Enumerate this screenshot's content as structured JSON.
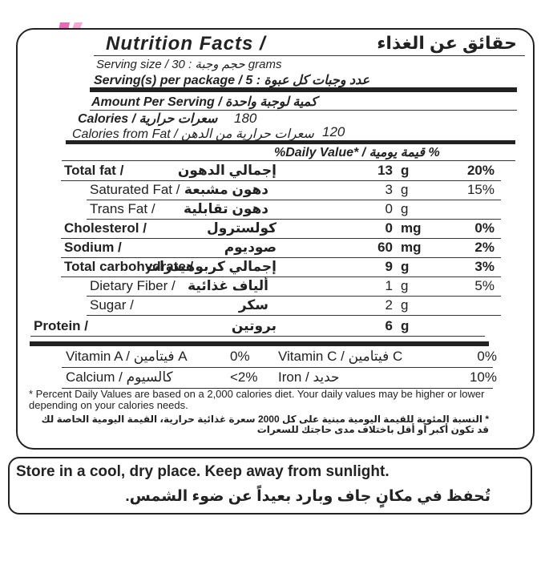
{
  "header": {
    "title_en": "Nutrition Facts /",
    "title_ar": "حقائق عن الغذاء",
    "serving_size": "Serving size / حجم وجبة : 30 grams",
    "servings": "Serving(s) per package / عدد وجبات كل عبوة : 5"
  },
  "calories": {
    "amount_per_serving": "Amount Per Serving / كمية لوجبة واحدة",
    "calories_label": "Calories / سعرات حرارية",
    "calories_value": "180",
    "from_fat_label": "Calories from Fat / سعرات حرارية من الدهن",
    "from_fat_value": "120",
    "dv_header": "%Daily Value* / قيمة يومية %"
  },
  "nutrients": [
    {
      "name_en": "Total fat /",
      "name_ar": "إجمالي الدهون",
      "amount": "13",
      "unit": "g",
      "dv": "20%",
      "bold": true,
      "indent": 0
    },
    {
      "name_en": "Saturated Fat /",
      "name_ar": "دهون مشبعة",
      "amount": "3",
      "unit": "g",
      "dv": "15%",
      "bold": false,
      "indent": 1
    },
    {
      "name_en": "Trans Fat /",
      "name_ar": "دهون تقابلية",
      "amount": "0",
      "unit": "g",
      "bold": false,
      "indent": 1
    },
    {
      "name_en": "Cholesterol /",
      "name_ar": "كولسترول",
      "amount": "0",
      "unit": "mg",
      "dv": "0%",
      "bold": true,
      "indent": 0
    },
    {
      "name_en": "Sodium /",
      "name_ar": "صوديوم",
      "amount": "60",
      "unit": "mg",
      "dv": "2%",
      "bold": true,
      "indent": 0
    },
    {
      "name_en": "Total carbohydrate /",
      "name_ar": "إجمالي كربوهيدرات",
      "amount": "9",
      "unit": "g",
      "dv": "3%",
      "bold": true,
      "indent": 0
    },
    {
      "name_en": "Dietary Fiber /",
      "name_ar": "ألياف غذائية",
      "amount": "1",
      "unit": "g",
      "dv": "5%",
      "bold": false,
      "indent": 1
    },
    {
      "name_en": "Sugar /",
      "name_ar": "سكر",
      "amount": "2",
      "unit": "g",
      "bold": false,
      "indent": 1
    },
    {
      "name_en": "Protein /",
      "name_ar": "بروتين",
      "amount": "6",
      "unit": "g",
      "bold": true,
      "indent": -1
    }
  ],
  "vitamins": [
    [
      {
        "name": "Vitamin A / فيتامين A",
        "dv": "0%"
      },
      {
        "name": "Vitamin C / فيتامين C",
        "dv": "0%"
      }
    ],
    [
      {
        "name": "Calcium / كالسيوم",
        "dv": "<2%"
      },
      {
        "name": "Iron / حديد",
        "dv": "10%"
      }
    ]
  ],
  "footnote": {
    "en": "* Percent Daily Values are based on a 2,000 calories diet. Your daily values may be higher or lower depending on your calories needs.",
    "ar": "* النسبة المئوية للقيمة اليومية مبنية على كل 2000 سعرة غذائية حرارية، القيمة اليومية الخاصة لك قد تكون أكبر أو أقل باختلاف مدى حاجتك للسعرات"
  },
  "storage": {
    "en": "Store in a cool, dry place. Keep away from sunlight.",
    "ar": "تُحفظ في مكانٍ جاف وبارد بعيداً عن ضوء الشمس."
  }
}
